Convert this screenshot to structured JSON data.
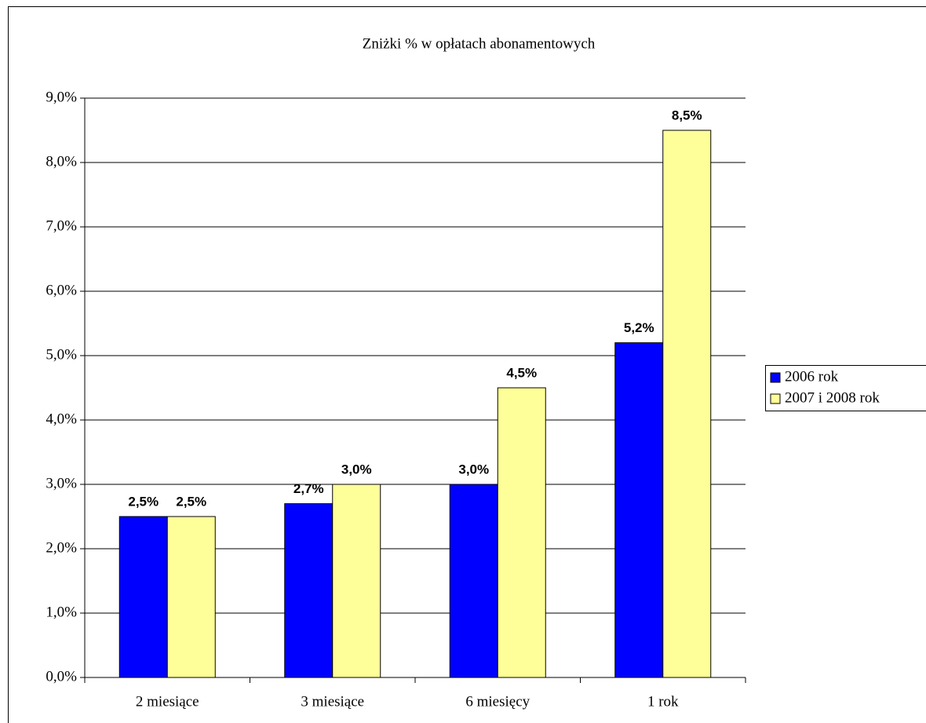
{
  "chart_data": {
    "type": "bar",
    "title": "Zniżki % w opłatach abonamentowych",
    "categories": [
      "2 miesiące",
      "3 miesiące",
      "6 miesięcy",
      "1 rok"
    ],
    "series": [
      {
        "name": "2006 rok",
        "color": "#0000ff",
        "values": [
          2.5,
          2.7,
          3.0,
          5.2
        ],
        "value_labels": [
          "2,5%",
          "2,7%",
          "3,0%",
          "5,2%"
        ]
      },
      {
        "name": "2007 i 2008 rok",
        "color": "#ffff99",
        "values": [
          2.5,
          3.0,
          4.5,
          8.5
        ],
        "value_labels": [
          "2,5%",
          "3,0%",
          "4,5%",
          "8,5%"
        ]
      }
    ],
    "ylim": [
      0,
      9
    ],
    "yticks": [
      {
        "value": 0,
        "label": "0,0%"
      },
      {
        "value": 1,
        "label": "1,0%"
      },
      {
        "value": 2,
        "label": "2,0%"
      },
      {
        "value": 3,
        "label": "3,0%"
      },
      {
        "value": 4,
        "label": "4,0%"
      },
      {
        "value": 5,
        "label": "5,0%"
      },
      {
        "value": 6,
        "label": "6,0%"
      },
      {
        "value": 7,
        "label": "7,0%"
      },
      {
        "value": 8,
        "label": "8,0%"
      },
      {
        "value": 9,
        "label": "9,0%"
      }
    ],
    "grid": true,
    "legend": "right"
  }
}
